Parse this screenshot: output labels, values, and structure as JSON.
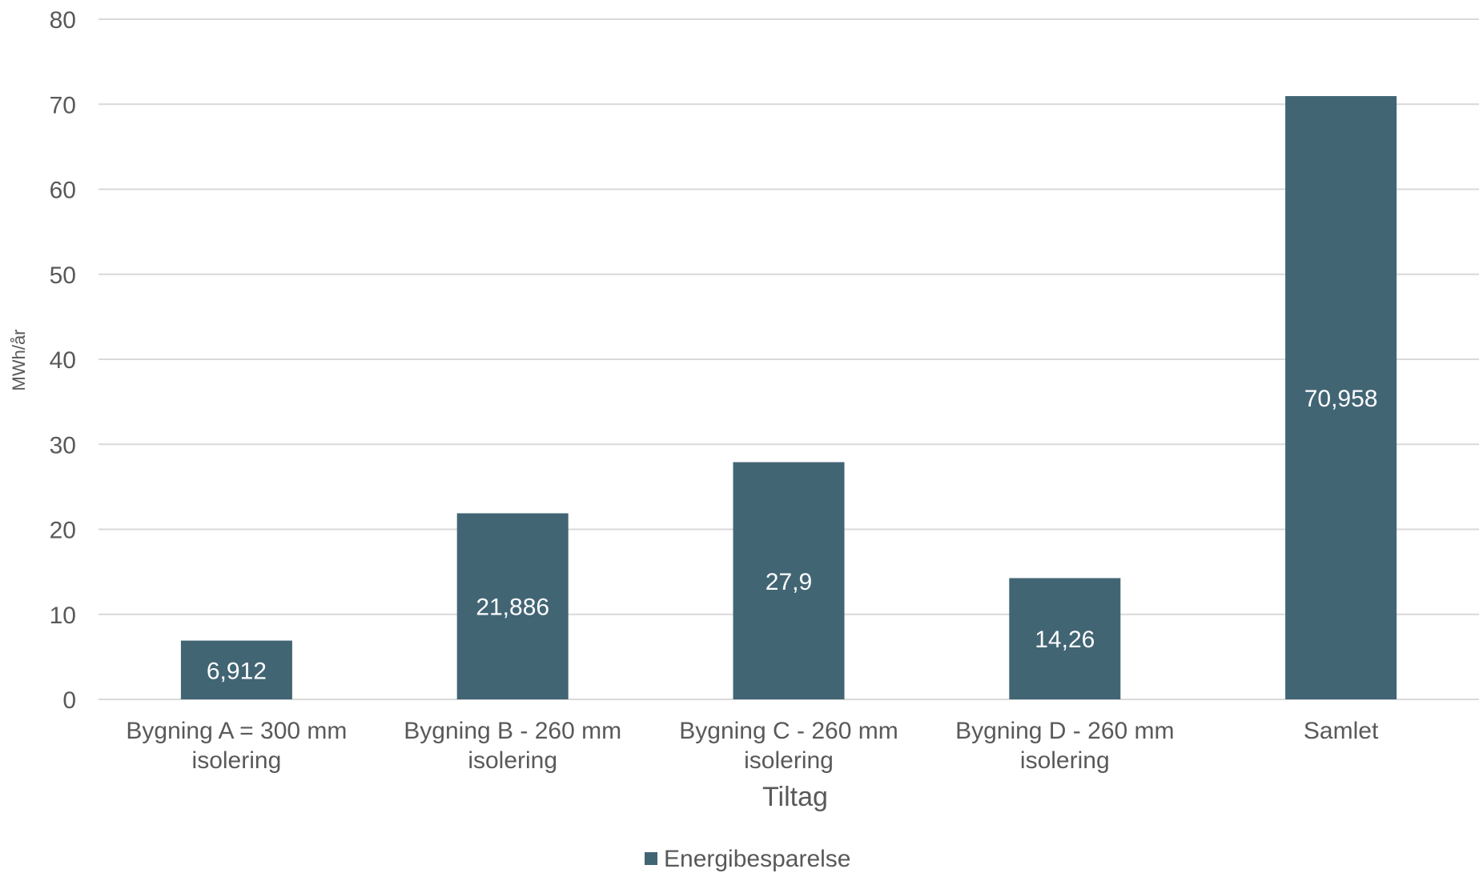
{
  "chart_data": {
    "type": "bar",
    "title": "",
    "categories": [
      [
        "Bygning A = 300 mm",
        "isolering"
      ],
      [
        "Bygning B - 260 mm",
        "isolering"
      ],
      [
        "Bygning C - 260 mm",
        "isolering"
      ],
      [
        "Bygning D - 260 mm",
        "isolering"
      ],
      [
        "Samlet"
      ]
    ],
    "series": [
      {
        "name": "Energibesparelse",
        "values": [
          6.912,
          21.886,
          27.9,
          14.26,
          70.958
        ],
        "data_labels": [
          "6,912",
          "21,886",
          "27,9",
          "14,26",
          "70,958"
        ],
        "color": "#426574"
      }
    ],
    "xlabel": "Tiltag",
    "ylabel": "MWh/år",
    "ylim": [
      0,
      80
    ],
    "yticks": [
      0,
      10,
      20,
      30,
      40,
      50,
      60,
      70,
      80
    ],
    "grid": true,
    "legend_position": "bottom",
    "colors": {
      "bar": "#426574",
      "grid": "#d9d9d9",
      "axis_text": "#595959",
      "data_label": "#ffffff"
    }
  }
}
